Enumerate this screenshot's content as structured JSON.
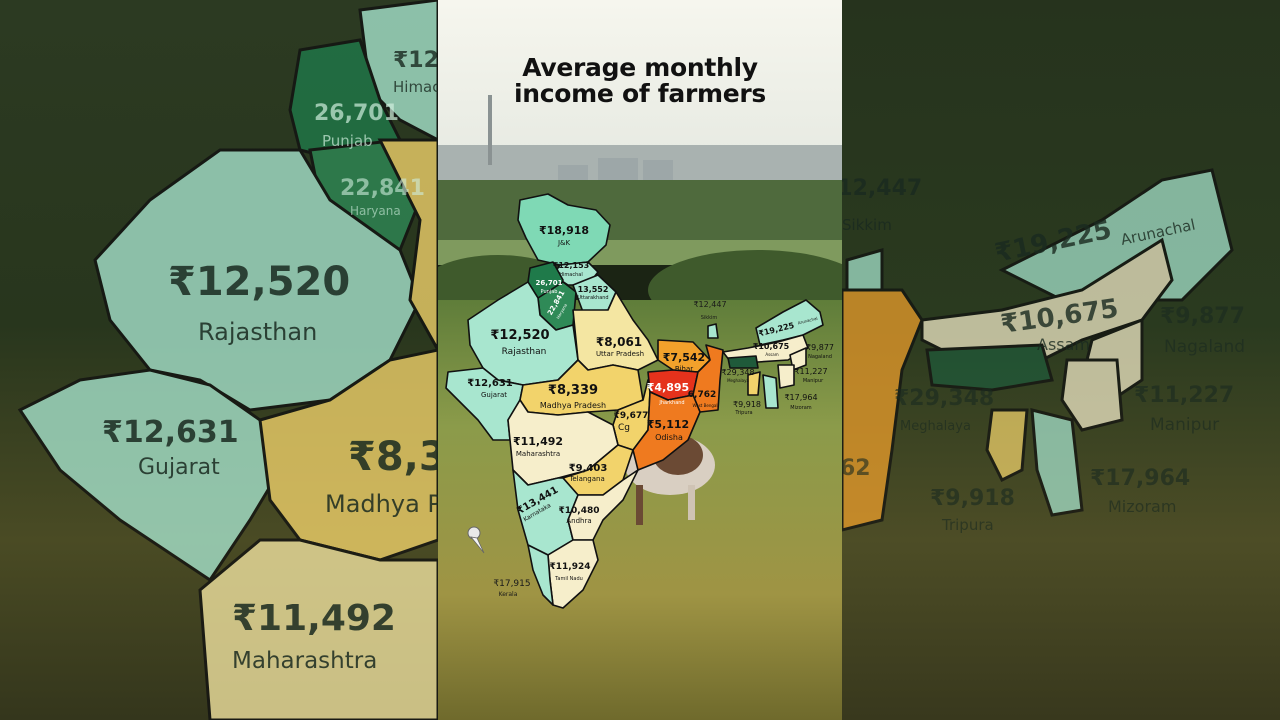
{
  "title": {
    "line1": "Average monthly",
    "line2": "income of farmers"
  },
  "colors": {
    "teal_light": "#a8e6cf",
    "teal": "#7fd9b5",
    "green_dark": "#1f7a4a",
    "yellow_light": "#f4e6a2",
    "yellow": "#f2d36b",
    "orange": "#f2a12b",
    "orange_dark": "#ef7a1f",
    "red": "#e5321c",
    "cream": "#f6eecb"
  },
  "states": [
    {
      "id": "jk",
      "value": "₹18,918",
      "name": "J&K"
    },
    {
      "id": "himachal",
      "value": "₹12,153",
      "name": "Himachal"
    },
    {
      "id": "punjab",
      "value": "26,701",
      "name": "Punjab"
    },
    {
      "id": "haryana",
      "value": "22,841",
      "name": "Haryana"
    },
    {
      "id": "uttarakhand",
      "value": "13,552",
      "name": "Uttarakhand"
    },
    {
      "id": "rajasthan",
      "value": "₹12,520",
      "name": "Rajasthan"
    },
    {
      "id": "gujarat",
      "value": "₹12,631",
      "name": "Gujarat"
    },
    {
      "id": "up",
      "value": "₹8,061",
      "name": "Uttar Pradesh"
    },
    {
      "id": "mp",
      "value": "₹8,339",
      "name": "Madhya Pradesh"
    },
    {
      "id": "bihar",
      "value": "₹7,542",
      "name": "Bihar"
    },
    {
      "id": "jharkhand",
      "value": "₹4,895",
      "name": "Jharkhand"
    },
    {
      "id": "wb",
      "value": "6,762",
      "name": "West Bengal"
    },
    {
      "id": "cg",
      "value": "₹9,677",
      "name": "Cg"
    },
    {
      "id": "odisha",
      "value": "₹5,112",
      "name": "Odisha"
    },
    {
      "id": "maharashtra",
      "value": "₹11,492",
      "name": "Maharashtra"
    },
    {
      "id": "telangana",
      "value": "₹9,403",
      "name": "Telangana"
    },
    {
      "id": "karnataka",
      "value": "₹13,441",
      "name": "Karnataka"
    },
    {
      "id": "andhra",
      "value": "₹10,480",
      "name": "Andhra"
    },
    {
      "id": "tamilnadu",
      "value": "₹11,924",
      "name": "Tamil Nadu"
    },
    {
      "id": "kerala",
      "value": "₹17,915",
      "name": "Kerala"
    },
    {
      "id": "sikkim",
      "value": "₹12,447",
      "name": "Sikkim"
    },
    {
      "id": "arunachal",
      "value": "₹19,225",
      "name": "Arunachal"
    },
    {
      "id": "assam",
      "value": "₹10,675",
      "name": "Assam"
    },
    {
      "id": "nagaland",
      "value": "₹9,877",
      "name": "Nagaland"
    },
    {
      "id": "meghalaya",
      "value": "₹29,348",
      "name": "Meghalaya"
    },
    {
      "id": "manipur",
      "value": "₹11,227",
      "name": "Manipur"
    },
    {
      "id": "tripura",
      "value": "₹9,918",
      "name": "Tripura"
    },
    {
      "id": "mizoram",
      "value": "₹17,964",
      "name": "Mizoram"
    }
  ]
}
